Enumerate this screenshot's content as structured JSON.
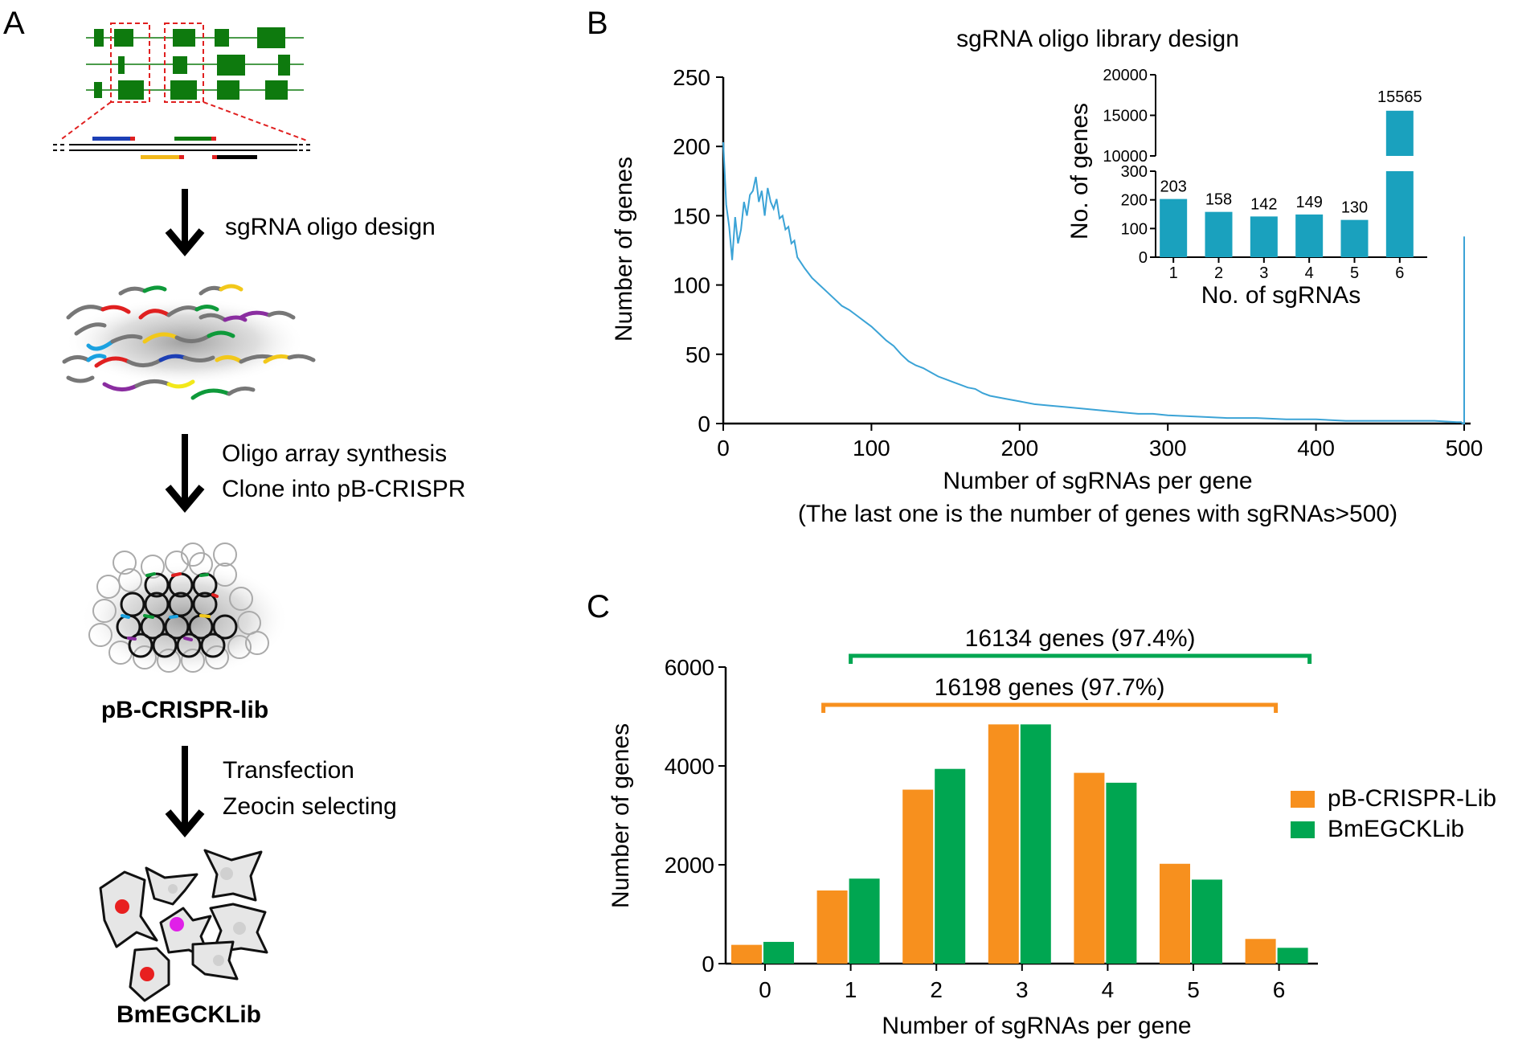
{
  "panels": {
    "a": "A",
    "b": "B",
    "c": "C"
  },
  "panel_a": {
    "steps": [
      {
        "line1": "sgRNA oligo design",
        "line2": ""
      },
      {
        "line1": "Oligo array synthesis",
        "line2": "Clone into pB-CRISPR"
      },
      {
        "line1": "Transfection",
        "line2": "Zeocin selecting"
      }
    ],
    "library_label": "pB-CRISPR-lib",
    "cells_label": "BmEGCKLib"
  },
  "colors": {
    "line": "#3ba3d6",
    "inset_bar": "#1aa1be",
    "orange": "#f7901e",
    "green": "#00a651",
    "exon": "#0e7a0e",
    "dashed": "#e02020"
  },
  "chart_data": [
    {
      "type": "line",
      "title": "sgRNA oligo library design",
      "xlabel": "Number of sgRNAs per gene",
      "xlabel_note": "(The last one is the number of genes with sgRNAs>500)",
      "ylabel": "Number of genes",
      "xlim": [
        0,
        500
      ],
      "ylim": [
        0,
        250
      ],
      "xticks": [
        0,
        100,
        200,
        300,
        400,
        500
      ],
      "yticks": [
        0,
        50,
        100,
        150,
        200,
        250
      ],
      "series": [
        {
          "name": "genes",
          "points": [
            [
              0,
              203
            ],
            [
              2,
              158
            ],
            [
              4,
              142
            ],
            [
              6,
              118
            ],
            [
              8,
              149
            ],
            [
              10,
              130
            ],
            [
              12,
              140
            ],
            [
              14,
              160
            ],
            [
              16,
              150
            ],
            [
              18,
              165
            ],
            [
              20,
              168
            ],
            [
              22,
              178
            ],
            [
              24,
              160
            ],
            [
              26,
              168
            ],
            [
              28,
              150
            ],
            [
              30,
              170
            ],
            [
              32,
              160
            ],
            [
              34,
              155
            ],
            [
              36,
              162
            ],
            [
              38,
              148
            ],
            [
              40,
              150
            ],
            [
              42,
              140
            ],
            [
              44,
              142
            ],
            [
              46,
              130
            ],
            [
              48,
              132
            ],
            [
              50,
              120
            ],
            [
              55,
              112
            ],
            [
              60,
              105
            ],
            [
              65,
              100
            ],
            [
              70,
              95
            ],
            [
              75,
              90
            ],
            [
              80,
              85
            ],
            [
              85,
              82
            ],
            [
              90,
              78
            ],
            [
              95,
              74
            ],
            [
              100,
              70
            ],
            [
              105,
              65
            ],
            [
              110,
              60
            ],
            [
              115,
              56
            ],
            [
              120,
              50
            ],
            [
              125,
              45
            ],
            [
              130,
              42
            ],
            [
              135,
              40
            ],
            [
              140,
              37
            ],
            [
              145,
              34
            ],
            [
              150,
              32
            ],
            [
              155,
              30
            ],
            [
              160,
              28
            ],
            [
              165,
              26
            ],
            [
              170,
              25
            ],
            [
              175,
              22
            ],
            [
              180,
              20
            ],
            [
              190,
              18
            ],
            [
              200,
              16
            ],
            [
              210,
              14
            ],
            [
              220,
              13
            ],
            [
              230,
              12
            ],
            [
              240,
              11
            ],
            [
              250,
              10
            ],
            [
              260,
              9
            ],
            [
              270,
              8
            ],
            [
              280,
              7
            ],
            [
              290,
              7
            ],
            [
              300,
              6
            ],
            [
              320,
              5
            ],
            [
              340,
              4
            ],
            [
              360,
              4
            ],
            [
              380,
              3
            ],
            [
              400,
              3
            ],
            [
              420,
              2
            ],
            [
              440,
              2
            ],
            [
              460,
              2
            ],
            [
              480,
              2
            ],
            [
              495,
              1
            ],
            [
              498,
              1
            ],
            [
              499,
              0
            ],
            [
              500,
              0
            ],
            [
              500,
              135
            ]
          ]
        }
      ]
    },
    {
      "type": "bar",
      "inset": true,
      "xlabel": "No. of sgRNAs",
      "ylabel": "No. of genes",
      "categories": [
        "1",
        "2",
        "3",
        "4",
        "5",
        "6"
      ],
      "values": [
        203,
        158,
        142,
        149,
        130,
        15565
      ],
      "data_labels": [
        "203",
        "158",
        "142",
        "149",
        "130",
        "15565"
      ],
      "yaxis_break": {
        "lower_range": [
          0,
          300
        ],
        "upper_range": [
          10000,
          20000
        ]
      },
      "yticks_lower": [
        0,
        100,
        200,
        300
      ],
      "yticks_upper": [
        10000,
        15000,
        20000
      ]
    },
    {
      "type": "bar",
      "xlabel": "Number of sgRNAs per gene",
      "ylabel": "Number of genes",
      "categories": [
        "0",
        "1",
        "2",
        "3",
        "4",
        "5",
        "6"
      ],
      "ylim": [
        0,
        6000
      ],
      "yticks": [
        0,
        2000,
        4000,
        6000
      ],
      "series": [
        {
          "name": "pB-CRISPR-Lib",
          "values": [
            380,
            1480,
            3520,
            4840,
            3860,
            2020,
            500
          ]
        },
        {
          "name": "BmEGCKLib",
          "values": [
            440,
            1720,
            3940,
            4840,
            3660,
            1700,
            320
          ]
        }
      ],
      "legend": "right",
      "brackets": [
        {
          "label": "16134 genes (97.4%)",
          "series": "BmEGCKLib",
          "from": "1",
          "to": "6"
        },
        {
          "label": "16198 genes (97.7%)",
          "series": "pB-CRISPR-Lib",
          "from": "1",
          "to": "6"
        }
      ]
    }
  ]
}
